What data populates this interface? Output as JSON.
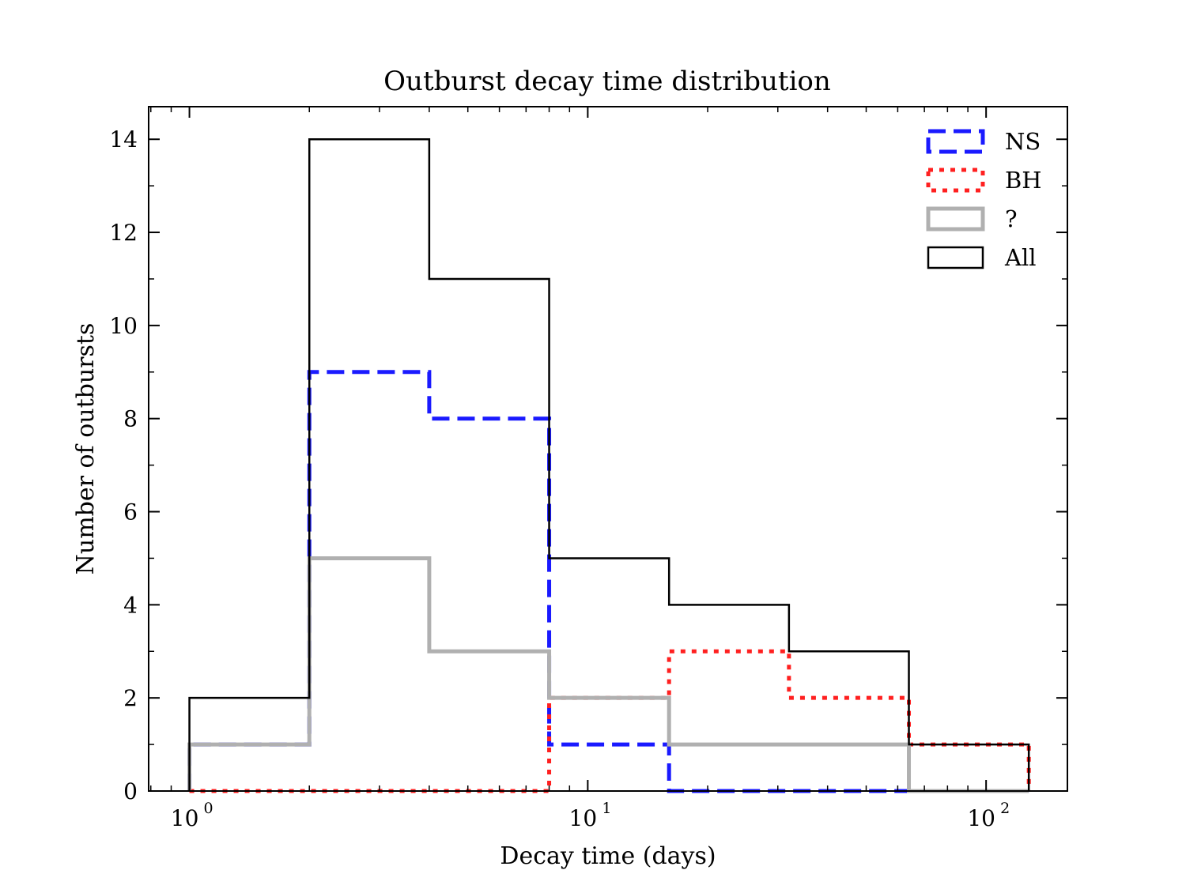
{
  "chart_data": {
    "type": "histogram",
    "title": "Outburst decay time distribution",
    "xlabel": "Decay time (days)",
    "ylabel": "Number of outbursts",
    "xscale": "log",
    "xlim": [
      0.79,
      160
    ],
    "ylim": [
      0,
      14.7
    ],
    "bin_edges": [
      1,
      2,
      4,
      8,
      16,
      32,
      64,
      128
    ],
    "x_ticks": [
      {
        "value": 1,
        "base": "10",
        "exp": "0"
      },
      {
        "value": 10,
        "base": "10",
        "exp": "1"
      },
      {
        "value": 100,
        "base": "10",
        "exp": "2"
      }
    ],
    "y_ticks": [
      0,
      2,
      4,
      6,
      8,
      10,
      12,
      14
    ],
    "legend_position": "top-right",
    "series": [
      {
        "name": "NS",
        "values": [
          1,
          9,
          8,
          1,
          0,
          0,
          0
        ],
        "color": "#1a1aff",
        "style": "dashed"
      },
      {
        "name": "BH",
        "values": [
          0,
          0,
          0,
          2,
          3,
          2,
          1
        ],
        "color": "#ff2020",
        "style": "dotted"
      },
      {
        "name": "?",
        "values": [
          1,
          5,
          3,
          2,
          1,
          1,
          0
        ],
        "color": "#b0b0b0",
        "style": "solid-thick"
      },
      {
        "name": "All",
        "values": [
          2,
          14,
          11,
          5,
          4,
          3,
          1
        ],
        "color": "#000000",
        "style": "solid"
      }
    ]
  }
}
